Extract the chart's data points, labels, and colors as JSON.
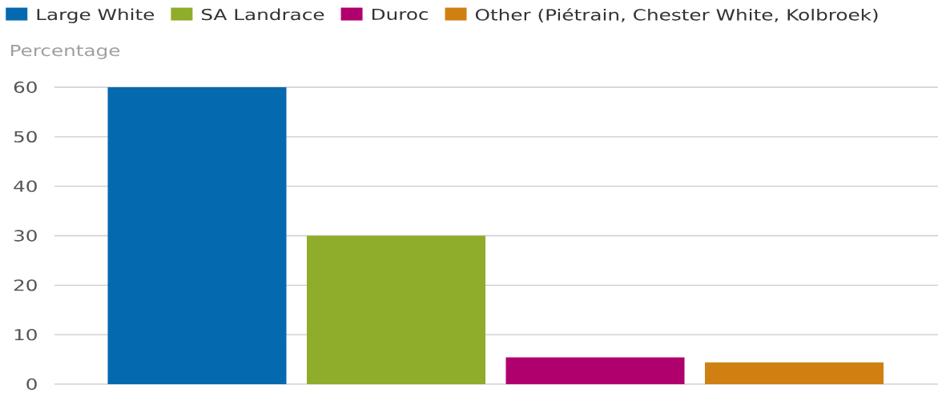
{
  "chart_data": {
    "type": "bar",
    "ylabel": "Percentage",
    "categories": [
      null,
      null,
      null,
      null
    ],
    "series": [
      {
        "name": "Large White",
        "color": "#0569b0",
        "values": [
          60,
          null,
          null,
          null
        ]
      },
      {
        "name": "SA Landrace",
        "color": "#8fac2a",
        "values": [
          null,
          30,
          null,
          null
        ]
      },
      {
        "name": "Duroc",
        "color": "#b0006e",
        "values": [
          null,
          null,
          5.4,
          null
        ]
      },
      {
        "name": "Other (Piétrain, Chester White, Kolbroek)",
        "color": "#d08012",
        "values": [
          null,
          null,
          null,
          4.4
        ]
      }
    ],
    "ylim": [
      0,
      60
    ],
    "yticks": [
      0,
      10,
      20,
      30,
      40,
      50,
      60
    ],
    "grid": "y",
    "legend": "top left"
  }
}
